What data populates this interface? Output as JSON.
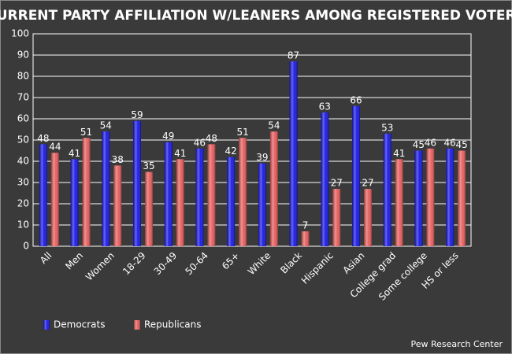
{
  "chart_data": {
    "type": "bar",
    "title": "CURRENT PARTY AFFILIATION W/LEANERS AMONG REGISTERED VOTERS",
    "categories": [
      "All",
      "Men",
      "Women",
      "18-29",
      "30-49",
      "50-64",
      "65+",
      "White",
      "Black",
      "Hispanic",
      "Asian",
      "College grad",
      "Some college",
      "HS or less"
    ],
    "series": [
      {
        "name": "Democrats",
        "color": "#1414e6",
        "values": [
          48,
          41,
          54,
          59,
          49,
          46,
          42,
          39,
          87,
          63,
          66,
          53,
          45,
          46
        ]
      },
      {
        "name": "Republicans",
        "color": "#e85a5a",
        "values": [
          44,
          51,
          38,
          35,
          41,
          48,
          51,
          54,
          7,
          27,
          27,
          41,
          46,
          45
        ]
      }
    ],
    "ylim": [
      0,
      100
    ],
    "yticks": [
      0,
      10,
      20,
      30,
      40,
      50,
      60,
      70,
      80,
      90,
      100
    ],
    "grid": true,
    "legend": "bottom-left",
    "source": "Pew Research Center"
  }
}
